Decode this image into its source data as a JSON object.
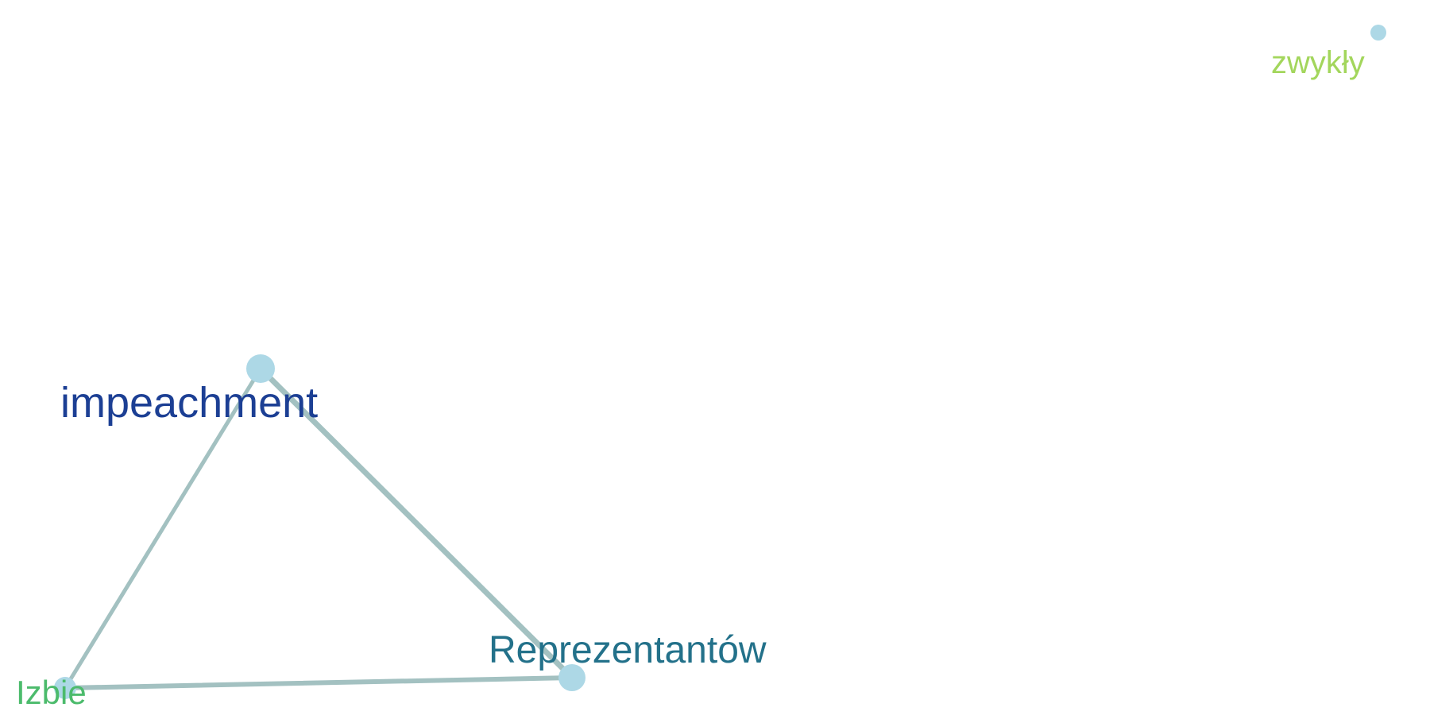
{
  "graph": {
    "nodes": [
      {
        "id": "impeachment",
        "label": "impeachment",
        "label_color": "#1c3f94"
      },
      {
        "id": "izbie",
        "label": "Izbie",
        "label_color": "#4cbb6c"
      },
      {
        "id": "reprezentantow",
        "label": "Reprezentantów",
        "label_color": "#23718a"
      },
      {
        "id": "zwykly",
        "label": "zwykły",
        "label_color": "#a3d65c"
      }
    ],
    "edges": [
      {
        "source": "impeachment",
        "target": "izbie"
      },
      {
        "source": "impeachment",
        "target": "reprezentantow"
      },
      {
        "source": "izbie",
        "target": "reprezentantow"
      }
    ],
    "colors": {
      "node_fill": "#add8e6",
      "edge_stroke": "#a3c1c1"
    }
  }
}
